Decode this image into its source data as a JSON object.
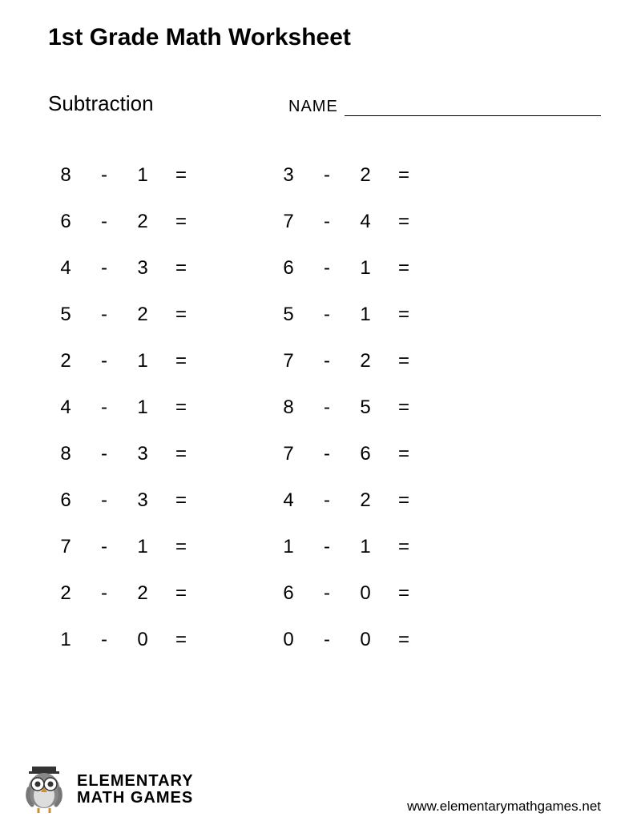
{
  "title": "1st Grade Math Worksheet",
  "subtitle": "Subtraction",
  "name_label": "NAME",
  "operator": "-",
  "equals": "=",
  "problem_fontsize": 24,
  "title_fontsize": 30,
  "subtitle_fontsize": 26,
  "text_color": "#000000",
  "background_color": "#ffffff",
  "columns": [
    {
      "problems": [
        {
          "a": "8",
          "b": "1"
        },
        {
          "a": "6",
          "b": "2"
        },
        {
          "a": "4",
          "b": "3"
        },
        {
          "a": "5",
          "b": "2"
        },
        {
          "a": "2",
          "b": "1"
        },
        {
          "a": "4",
          "b": "1"
        },
        {
          "a": "8",
          "b": "3"
        },
        {
          "a": "6",
          "b": "3"
        },
        {
          "a": "7",
          "b": "1"
        },
        {
          "a": "2",
          "b": "2"
        },
        {
          "a": "1",
          "b": "0"
        }
      ]
    },
    {
      "problems": [
        {
          "a": "3",
          "b": "2"
        },
        {
          "a": "7",
          "b": "4"
        },
        {
          "a": "6",
          "b": "1"
        },
        {
          "a": "5",
          "b": "1"
        },
        {
          "a": "7",
          "b": "2"
        },
        {
          "a": "8",
          "b": "5"
        },
        {
          "a": "7",
          "b": "6"
        },
        {
          "a": "4",
          "b": "2"
        },
        {
          "a": "1",
          "b": "1"
        },
        {
          "a": "6",
          "b": "0"
        },
        {
          "a": "0",
          "b": "0"
        }
      ]
    }
  ],
  "logo": {
    "line1": "ELEMENTARY",
    "line2": "MATH GAMES"
  },
  "website": "www.elementarymathgames.net"
}
